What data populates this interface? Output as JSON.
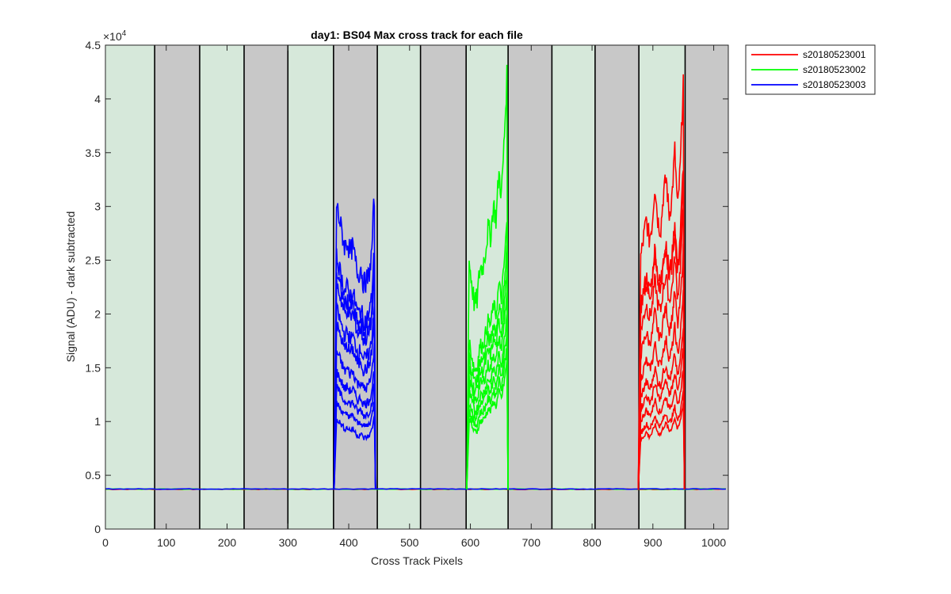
{
  "chart_data": {
    "type": "line",
    "title": "day1: BS04  Max cross track for each file",
    "xlabel": "Cross Track Pixels",
    "ylabel": "Signal (ADU) - dark subtracted",
    "xlim": [
      0,
      1024
    ],
    "ylim": [
      0,
      45000
    ],
    "x_ticks": [
      0,
      100,
      200,
      300,
      400,
      500,
      600,
      700,
      800,
      900,
      1000
    ],
    "x_tick_labels": [
      "0",
      "100",
      "200",
      "300",
      "400",
      "500",
      "600",
      "700",
      "800",
      "900",
      "1000"
    ],
    "y_ticks": [
      0,
      5000,
      10000,
      15000,
      20000,
      25000,
      30000,
      35000,
      40000,
      45000
    ],
    "y_tick_labels": [
      "0",
      "0.5",
      "1",
      "1.5",
      "2",
      "2.5",
      "3",
      "3.5",
      "4",
      "4.5"
    ],
    "y_exponent_label": "×10",
    "y_exponent_power": "4",
    "grid": false,
    "legend_position": "outside-top-right",
    "band_colors": [
      "#d6e8da",
      "#c8c8c8"
    ],
    "band_edges": [
      0,
      81,
      155,
      228,
      300,
      375,
      447,
      518,
      593,
      662,
      734,
      805,
      877,
      953,
      1024
    ],
    "baseline": 3700,
    "series": [
      {
        "name": "s20180523001",
        "color": "#ff0000",
        "x_start": 880,
        "x_end": 950,
        "profile": [
          0.83,
          0.9,
          0.97,
          0.9,
          0.95,
          1.1,
          0.97,
          0.93,
          1.06,
          1.12,
          0.98,
          1.05,
          1.22,
          1.0,
          1.17,
          1.48
        ],
        "peaks": [
          42000,
          34000,
          33000,
          30000,
          26000,
          22000,
          19000,
          17000,
          15000,
          13000,
          11800
        ]
      },
      {
        "name": "s20180523002",
        "color": "#00ff00",
        "x_start": 598,
        "x_end": 660,
        "profile": [
          0.72,
          0.65,
          0.58,
          0.6,
          0.7,
          0.7,
          0.75,
          0.82,
          0.8,
          0.9,
          0.85,
          1.0,
          0.93,
          1.1,
          1.3
        ],
        "peaks": [
          42000,
          28500,
          26000,
          24000,
          22000,
          20000,
          18500,
          17000,
          15500
        ]
      },
      {
        "name": "s20180523003",
        "color": "#0000ff",
        "x_start": 380,
        "x_end": 442,
        "profile": [
          1.0,
          0.95,
          0.9,
          0.85,
          0.87,
          0.83,
          0.85,
          0.8,
          0.75,
          0.78,
          0.72,
          0.73,
          0.75,
          0.82,
          1.03
        ],
        "peaks": [
          31000,
          26000,
          24500,
          23500,
          21000,
          19500,
          17000,
          15000,
          13500,
          12000,
          10500
        ]
      }
    ]
  }
}
